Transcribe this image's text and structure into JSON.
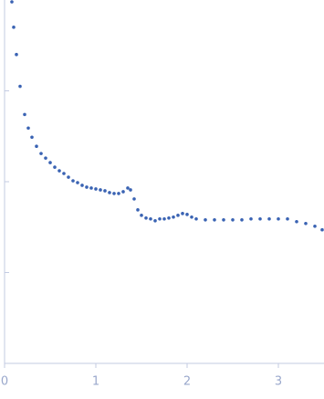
{
  "chart_data": {
    "type": "scatter",
    "x": [
      0.08,
      0.1,
      0.13,
      0.17,
      0.22,
      0.26,
      0.3,
      0.35,
      0.4,
      0.45,
      0.5,
      0.55,
      0.6,
      0.65,
      0.7,
      0.75,
      0.8,
      0.85,
      0.9,
      0.95,
      1.0,
      1.05,
      1.1,
      1.15,
      1.2,
      1.25,
      1.3,
      1.35,
      1.38,
      1.42,
      1.46,
      1.5,
      1.55,
      1.6,
      1.65,
      1.7,
      1.75,
      1.8,
      1.85,
      1.9,
      1.95,
      2.0,
      2.05,
      2.1,
      2.2,
      2.3,
      2.4,
      2.5,
      2.6,
      2.7,
      2.8,
      2.9,
      3.0,
      3.1,
      3.2,
      3.3,
      3.4,
      3.48
    ],
    "values": [
      3.98,
      3.7,
      3.4,
      3.05,
      2.74,
      2.59,
      2.49,
      2.39,
      2.31,
      2.26,
      2.21,
      2.16,
      2.12,
      2.09,
      2.05,
      2.01,
      1.99,
      1.96,
      1.94,
      1.93,
      1.92,
      1.91,
      1.9,
      1.88,
      1.87,
      1.87,
      1.89,
      1.93,
      1.91,
      1.81,
      1.69,
      1.63,
      1.6,
      1.59,
      1.57,
      1.59,
      1.59,
      1.6,
      1.61,
      1.63,
      1.65,
      1.64,
      1.61,
      1.59,
      1.58,
      1.58,
      1.58,
      1.58,
      1.58,
      1.59,
      1.59,
      1.59,
      1.59,
      1.59,
      1.56,
      1.54,
      1.51,
      1.47
    ],
    "color": "#3a63b3",
    "xlim": [
      0,
      3.5
    ],
    "xticks": [
      0,
      1,
      2,
      3
    ],
    "ylim": [
      0,
      4
    ],
    "yticks": [
      1,
      2,
      3
    ]
  }
}
